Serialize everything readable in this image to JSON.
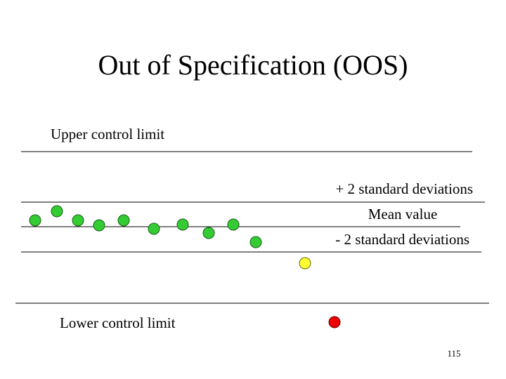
{
  "title": "Out of Specification (OOS)",
  "labels": {
    "upper_control_limit": "Upper control limit",
    "plus_2sd": "+ 2 standard deviations",
    "mean": "Mean value",
    "minus_2sd": "- 2 standard deviations",
    "lower_control_limit": "Lower control limit"
  },
  "page_number": "115"
}
